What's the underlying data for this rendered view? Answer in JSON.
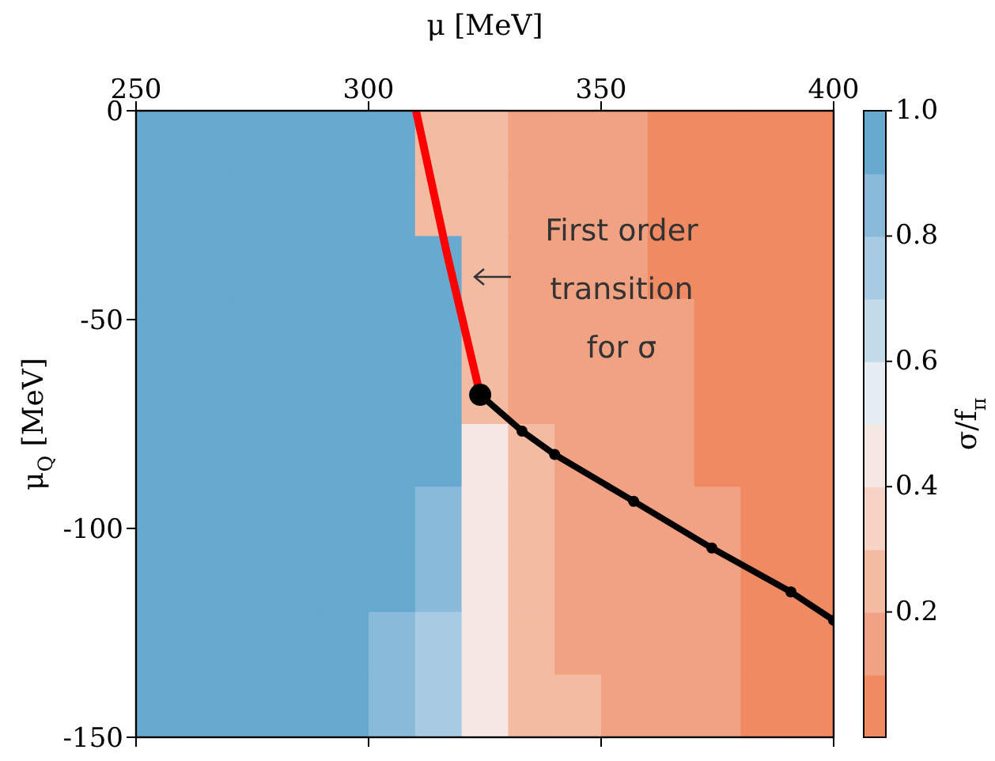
{
  "chart_data": {
    "type": "scatter",
    "xlabel": "μ [MeV]",
    "ylabel": "μ$_{Q}$ [MeV]",
    "clabel": "σ/f$_{π}$",
    "xlim": [
      250,
      400
    ],
    "xticks": [
      250,
      300,
      350,
      400
    ],
    "ylim": [
      -150,
      0
    ],
    "yticks": [
      0,
      -50,
      -100,
      -150
    ],
    "clim": [
      0,
      1
    ],
    "cticks": [
      0.2,
      0.4,
      0.6,
      0.8,
      {
        "value": 1,
        "label": "1.0"
      }
    ],
    "annotations": [
      "First order transition for σ"
    ],
    "series": [
      {
        "type": "scatter",
        "marker": "square",
        "colors": [
          "#67a9cf",
          "#67a9cf",
          "#67a9cf",
          "#67a9cf",
          "#67a9cf",
          "#67a9cf",
          "#f4bba3",
          "#f4bba3",
          "#f1a283",
          "#f1a283",
          "#f1a283",
          "#ef8a62",
          "#ef8a62",
          "#ef8a62",
          "#ef8a62",
          "#67a9cf",
          "#67a9cf",
          "#67a9cf",
          "#67a9cf",
          "#67a9cf",
          "#67a9cf",
          "#f4bba3",
          "#f4bba3",
          "#f1a283",
          "#f1a283",
          "#f1a283",
          "#ef8a62",
          "#ef8a62",
          "#ef8a62",
          "#ef8a62",
          "#67a9cf",
          "#67a9cf",
          "#67a9cf",
          "#67a9cf",
          "#67a9cf",
          "#67a9cf",
          "#67a9cf",
          "#f4bba3",
          "#f1a283",
          "#f1a283",
          "#f1a283",
          "#ef8a62",
          "#ef8a62",
          "#ef8a62",
          "#ef8a62",
          "#67a9cf",
          "#67a9cf",
          "#67a9cf",
          "#67a9cf",
          "#67a9cf",
          "#67a9cf",
          "#67a9cf",
          "#f4bba3",
          "#f1a283",
          "#f1a283",
          "#f1a283",
          "#f1a283",
          "#ef8a62",
          "#ef8a62",
          "#ef8a62",
          "#67a9cf",
          "#67a9cf",
          "#67a9cf",
          "#67a9cf",
          "#67a9cf",
          "#67a9cf",
          "#67a9cf",
          "#f4bba3",
          "#f1a283",
          "#f1a283",
          "#f1a283",
          "#f1a283",
          "#ef8a62",
          "#ef8a62",
          "#ef8a62",
          "#67a9cf",
          "#67a9cf",
          "#67a9cf",
          "#67a9cf",
          "#67a9cf",
          "#67a9cf",
          "#67a9cf",
          "#f6e8e3",
          "#f4bba3",
          "#f1a283",
          "#f1a283",
          "#f1a283",
          "#ef8a62",
          "#ef8a62",
          "#ef8a62",
          "#67a9cf",
          "#67a9cf",
          "#67a9cf",
          "#67a9cf",
          "#67a9cf",
          "#67a9cf",
          "#8abada",
          "#f6e8e3",
          "#f4bba3",
          "#f1a283",
          "#f1a283",
          "#f1a283",
          "#f1a283",
          "#ef8a62",
          "#ef8a62",
          "#67a9cf",
          "#67a9cf",
          "#67a9cf",
          "#67a9cf",
          "#67a9cf",
          "#67a9cf",
          "#8abada",
          "#f6e8e3",
          "#f4bba3",
          "#f1a283",
          "#f1a283",
          "#f1a283",
          "#f1a283",
          "#ef8a62",
          "#ef8a62",
          "#67a9cf",
          "#67a9cf",
          "#67a9cf",
          "#67a9cf",
          "#67a9cf",
          "#8abada",
          "#a7cbe3",
          "#f6e8e3",
          "#f4bba3",
          "#f1a283",
          "#f1a283",
          "#f1a283",
          "#f1a283",
          "#ef8a62",
          "#ef8a62",
          "#67a9cf",
          "#67a9cf",
          "#67a9cf",
          "#67a9cf",
          "#67a9cf",
          "#8abada",
          "#a7cbe3",
          "#f6e8e3",
          "#f4bba3",
          "#f4bba3",
          "#f1a283",
          "#f1a283",
          "#f1a283",
          "#ef8a62",
          "#ef8a62"
        ],
        "x": [
          255,
          265,
          275,
          285,
          295,
          305,
          315,
          325,
          335,
          345,
          355,
          365,
          375,
          385,
          395,
          255,
          265,
          275,
          285,
          295,
          305,
          315,
          325,
          335,
          345,
          355,
          365,
          375,
          385,
          395,
          255,
          265,
          275,
          285,
          295,
          305,
          315,
          325,
          335,
          345,
          355,
          365,
          375,
          385,
          395,
          255,
          265,
          275,
          285,
          295,
          305,
          315,
          325,
          335,
          345,
          355,
          365,
          375,
          385,
          395,
          255,
          265,
          275,
          285,
          295,
          305,
          315,
          325,
          335,
          345,
          355,
          365,
          375,
          385,
          395,
          255,
          265,
          275,
          285,
          295,
          305,
          315,
          325,
          335,
          345,
          355,
          365,
          375,
          385,
          395,
          255,
          265,
          275,
          285,
          295,
          305,
          315,
          325,
          335,
          345,
          355,
          365,
          375,
          385,
          395,
          255,
          265,
          275,
          285,
          295,
          305,
          315,
          325,
          335,
          345,
          355,
          365,
          375,
          385,
          395,
          255,
          265,
          275,
          285,
          295,
          305,
          315,
          325,
          335,
          345,
          355,
          365,
          375,
          385,
          395,
          255,
          265,
          275,
          285,
          295,
          305,
          315,
          325,
          335,
          345,
          355,
          365,
          375,
          385,
          395
        ],
        "values": [
          -7.5,
          -7.5,
          -7.5,
          -7.5,
          -7.5,
          -7.5,
          -7.5,
          -7.5,
          -7.5,
          -7.5,
          -7.5,
          -7.5,
          -7.5,
          -7.5,
          -7.5,
          -22.5,
          -22.5,
          -22.5,
          -22.5,
          -22.5,
          -22.5,
          -22.5,
          -22.5,
          -22.5,
          -22.5,
          -22.5,
          -22.5,
          -22.5,
          -22.5,
          -22.5,
          -37.5,
          -37.5,
          -37.5,
          -37.5,
          -37.5,
          -37.5,
          -37.5,
          -37.5,
          -37.5,
          -37.5,
          -37.5,
          -37.5,
          -37.5,
          -37.5,
          -37.5,
          -52.5,
          -52.5,
          -52.5,
          -52.5,
          -52.5,
          -52.5,
          -52.5,
          -52.5,
          -52.5,
          -52.5,
          -52.5,
          -52.5,
          -52.5,
          -52.5,
          -52.5,
          -67.5,
          -67.5,
          -67.5,
          -67.5,
          -67.5,
          -67.5,
          -67.5,
          -67.5,
          -67.5,
          -67.5,
          -67.5,
          -67.5,
          -67.5,
          -67.5,
          -67.5,
          -82.5,
          -82.5,
          -82.5,
          -82.5,
          -82.5,
          -82.5,
          -82.5,
          -82.5,
          -82.5,
          -82.5,
          -82.5,
          -82.5,
          -82.5,
          -82.5,
          -82.5,
          -97.5,
          -97.5,
          -97.5,
          -97.5,
          -97.5,
          -97.5,
          -97.5,
          -97.5,
          -97.5,
          -97.5,
          -97.5,
          -97.5,
          -97.5,
          -97.5,
          -97.5,
          -112.5,
          -112.5,
          -112.5,
          -112.5,
          -112.5,
          -112.5,
          -112.5,
          -112.5,
          -112.5,
          -112.5,
          -112.5,
          -112.5,
          -112.5,
          -112.5,
          -112.5,
          -127.5,
          -127.5,
          -127.5,
          -127.5,
          -127.5,
          -127.5,
          -127.5,
          -127.5,
          -127.5,
          -127.5,
          -127.5,
          -127.5,
          -127.5,
          -127.5,
          -127.5,
          -142.5,
          -142.5,
          -142.5,
          -142.5,
          -142.5,
          -142.5,
          -142.5,
          -142.5,
          -142.5,
          -142.5,
          -142.5,
          -142.5,
          -142.5,
          -142.5,
          -142.5
        ],
        "cvalues": [
          0.95,
          0.95,
          0.95,
          0.95,
          0.95,
          0.95,
          0.25,
          0.25,
          0.15,
          0.15,
          0.15,
          0.05,
          0.05,
          0.05,
          0.05,
          0.95,
          0.95,
          0.95,
          0.95,
          0.95,
          0.95,
          0.25,
          0.25,
          0.15,
          0.15,
          0.15,
          0.05,
          0.05,
          0.05,
          0.05,
          0.95,
          0.95,
          0.95,
          0.95,
          0.95,
          0.95,
          0.95,
          0.25,
          0.15,
          0.15,
          0.15,
          0.05,
          0.05,
          0.05,
          0.05,
          0.95,
          0.95,
          0.95,
          0.95,
          0.95,
          0.95,
          0.95,
          0.25,
          0.15,
          0.15,
          0.15,
          0.15,
          0.05,
          0.05,
          0.05,
          0.95,
          0.95,
          0.95,
          0.95,
          0.95,
          0.95,
          0.95,
          0.25,
          0.15,
          0.15,
          0.15,
          0.15,
          0.05,
          0.05,
          0.05,
          0.95,
          0.95,
          0.95,
          0.95,
          0.95,
          0.95,
          0.95,
          0.45,
          0.25,
          0.15,
          0.15,
          0.15,
          0.05,
          0.05,
          0.05,
          0.95,
          0.95,
          0.95,
          0.95,
          0.95,
          0.95,
          0.85,
          0.45,
          0.25,
          0.15,
          0.15,
          0.15,
          0.15,
          0.05,
          0.05,
          0.95,
          0.95,
          0.95,
          0.95,
          0.95,
          0.95,
          0.85,
          0.45,
          0.25,
          0.15,
          0.15,
          0.15,
          0.15,
          0.05,
          0.05,
          0.95,
          0.95,
          0.95,
          0.95,
          0.95,
          0.85,
          0.75,
          0.45,
          0.25,
          0.15,
          0.15,
          0.15,
          0.15,
          0.05,
          0.05,
          0.95,
          0.95,
          0.95,
          0.95,
          0.95,
          0.85,
          0.75,
          0.45,
          0.25,
          0.25,
          0.15,
          0.15,
          0.15,
          0.05,
          0.05
        ]
      },
      {
        "type": "line",
        "color": "#ff0000",
        "marker": "none",
        "x": [
          310.2,
          316.8,
          324
        ],
        "values": [
          0,
          -34,
          -68
        ]
      },
      {
        "type": "line",
        "color": "#000000",
        "marker": "circle",
        "x": [
          324,
          333,
          340,
          357,
          373.8,
          390.8,
          400
        ],
        "values": [
          -68,
          -76.7,
          -82.3,
          -93.5,
          -104.7,
          -115.2,
          -122
        ]
      },
      {
        "type": "scatter",
        "color": "#000000",
        "marker": "circle",
        "x": [
          324
        ],
        "values": [
          -68
        ]
      }
    ]
  }
}
